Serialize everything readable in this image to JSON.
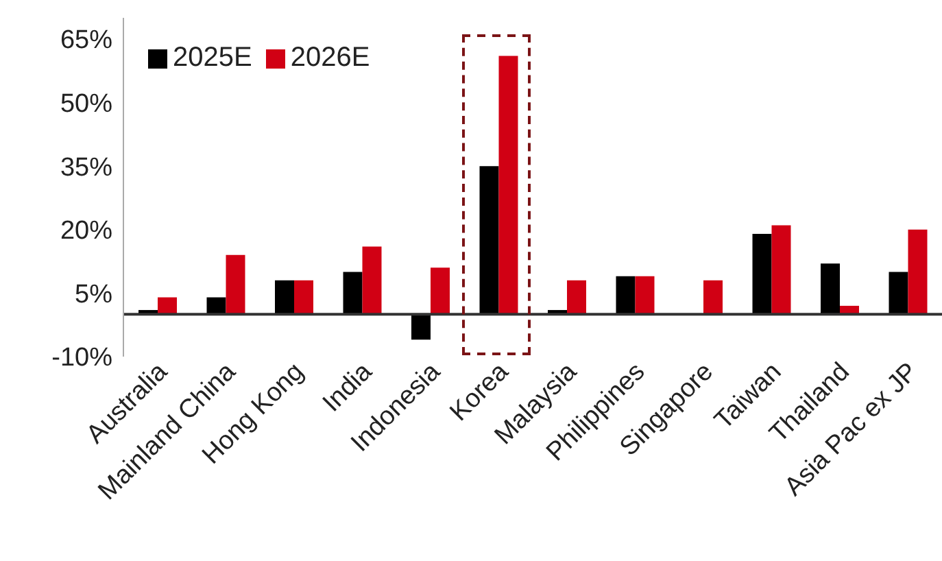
{
  "chart_data": {
    "type": "bar",
    "categories": [
      "Australia",
      "Mainland China",
      "Hong Kong",
      "India",
      "Indonesia",
      "Korea",
      "Malaysia",
      "Philippines",
      "Singapore",
      "Taiwan",
      "Thailand",
      "Asia Pac ex JP"
    ],
    "series": [
      {
        "name": "2025E",
        "color": "#000000",
        "values": [
          1,
          4,
          8,
          10,
          -6,
          35,
          1,
          9,
          0,
          19,
          12,
          10
        ]
      },
      {
        "name": "2026E",
        "color": "#d10014",
        "values": [
          4,
          14,
          8,
          16,
          11,
          61,
          8,
          9,
          8,
          21,
          2,
          20
        ]
      }
    ],
    "ylim": [
      -10,
      70
    ],
    "yticks": [
      {
        "value": -10,
        "label": "-10%"
      },
      {
        "value": 5,
        "label": "5%"
      },
      {
        "value": 20,
        "label": "20%"
      },
      {
        "value": 35,
        "label": "35%"
      },
      {
        "value": 50,
        "label": "50%"
      },
      {
        "value": 65,
        "label": "65%"
      }
    ],
    "grid": false,
    "legend": "top left"
  }
}
